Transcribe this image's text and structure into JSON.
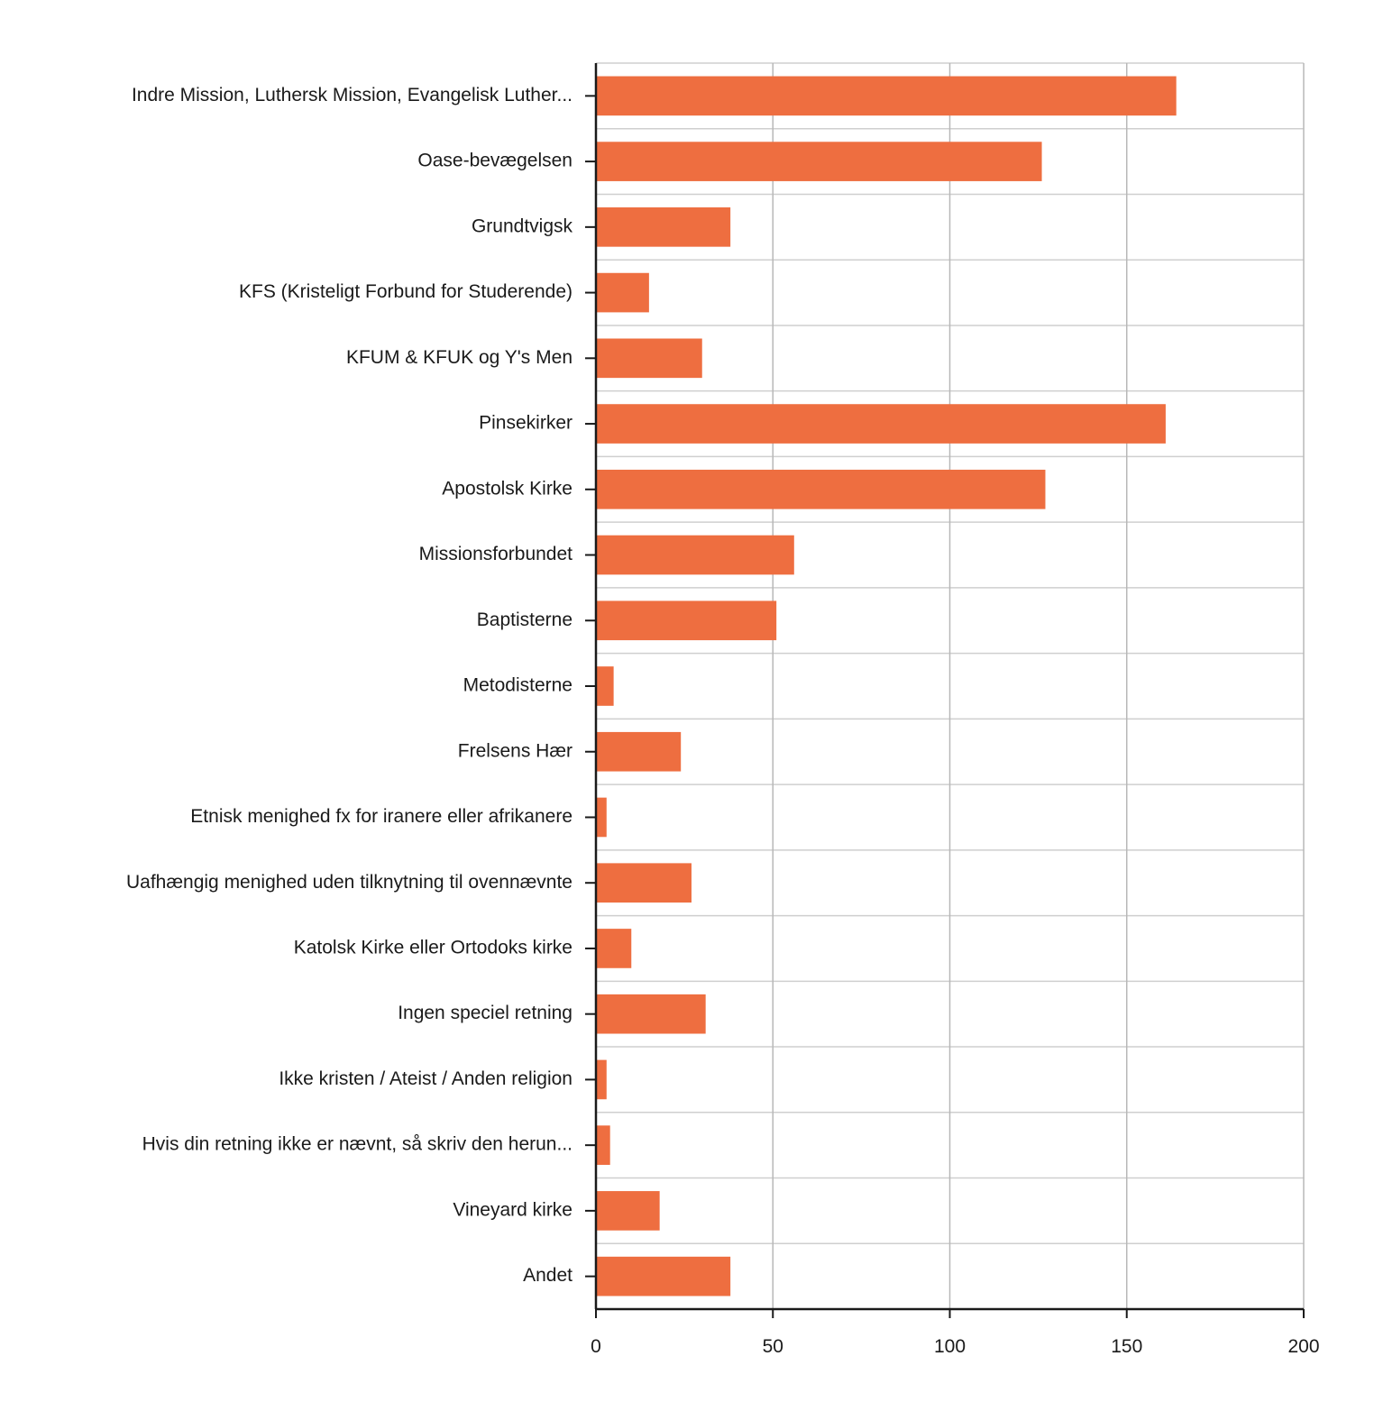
{
  "chart_data": {
    "type": "bar",
    "orientation": "horizontal",
    "title": "",
    "xlabel": "",
    "ylabel": "",
    "xlim": [
      0,
      200
    ],
    "xticks": [
      0,
      50,
      100,
      150,
      200
    ],
    "grid": true,
    "bar_color": "#ee6e40",
    "categories": [
      "Indre Mission, Luthersk Mission, Evangelisk Luther...",
      "Oase-bevægelsen",
      "Grundtvigsk",
      "KFS (Kristeligt Forbund for Studerende)",
      "KFUM & KFUK og Y's Men",
      "Pinsekirker",
      "Apostolsk Kirke",
      "Missionsforbundet",
      "Baptisterne",
      "Metodisterne",
      "Frelsens Hær",
      "Etnisk menighed fx for iranere eller afrikanere",
      "Uafhængig menighed uden tilknytning til ovennævnte",
      "Katolsk Kirke eller Ortodoks kirke",
      "Ingen speciel retning",
      "Ikke kristen / Ateist / Anden religion",
      "Hvis din retning ikke er nævnt, så skriv den herun...",
      "Vineyard kirke",
      "Andet"
    ],
    "values": [
      164,
      126,
      38,
      15,
      30,
      161,
      127,
      56,
      51,
      5,
      24,
      3,
      27,
      10,
      31,
      3,
      4,
      18,
      38
    ]
  }
}
